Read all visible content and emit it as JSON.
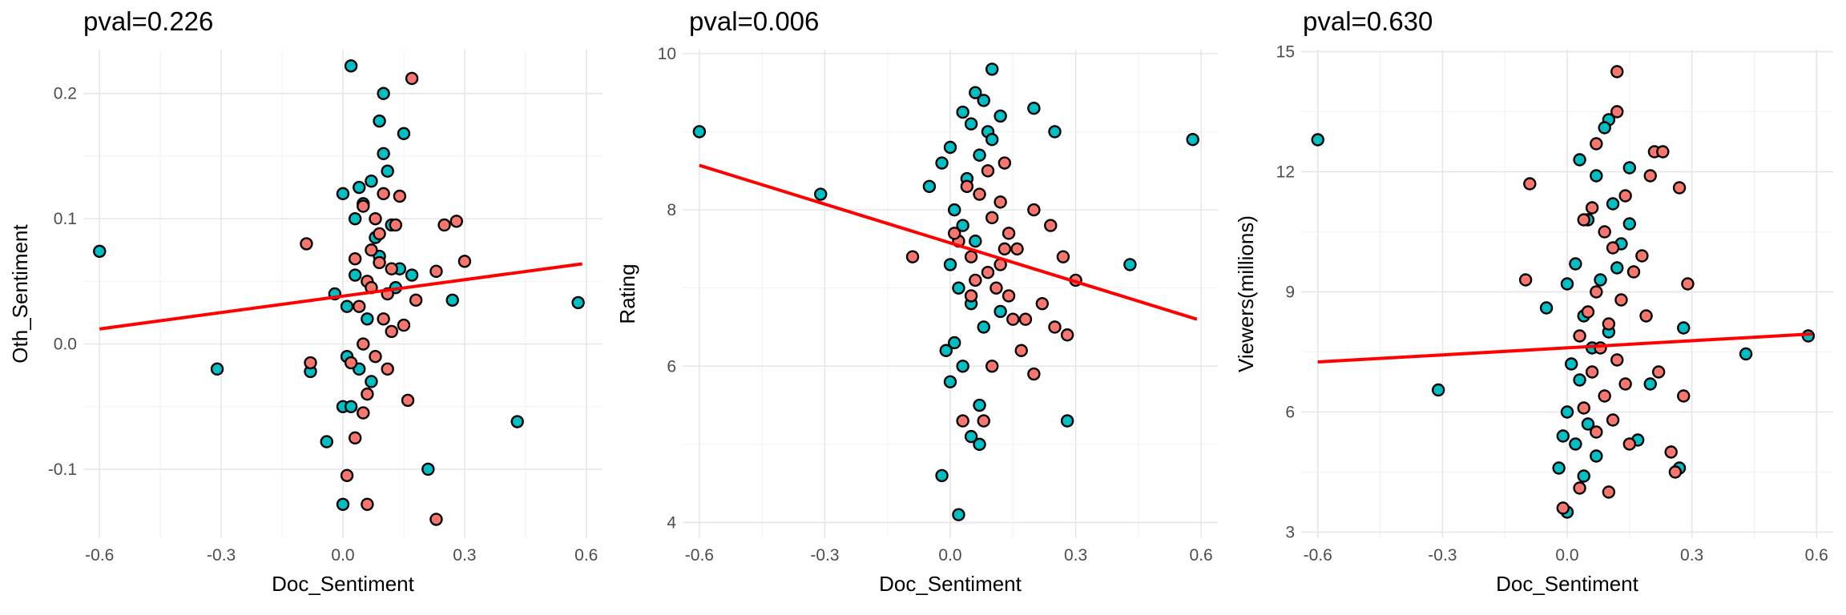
{
  "chart_data": [
    {
      "type": "scatter",
      "title": "pval=0.226",
      "xlabel": "Doc_Sentiment",
      "ylabel": "Oth_Sentiment",
      "xlim": [
        -0.64,
        0.64
      ],
      "ylim": [
        -0.155,
        0.235
      ],
      "xticks": [
        -0.6,
        -0.3,
        0.0,
        0.3,
        0.6
      ],
      "xtick_labels": [
        "-0.6",
        "-0.3",
        "0.0",
        "0.3",
        "0.6"
      ],
      "yticks": [
        -0.1,
        0.0,
        0.1,
        0.2
      ],
      "ytick_labels": [
        "-0.1",
        "0.0",
        "0.1",
        "0.2"
      ],
      "grid": true,
      "colors": {
        "teal": "#00BFC4",
        "salmon": "#F8766D",
        "fit": "#FF0000"
      },
      "fit_line": {
        "x": [
          -0.6,
          0.59
        ],
        "y": [
          0.012,
          0.064
        ]
      },
      "series": [
        {
          "color": "teal",
          "points": [
            [
              -0.6,
              0.074
            ],
            [
              -0.31,
              -0.02
            ],
            [
              0.43,
              -0.062
            ],
            [
              0.58,
              0.033
            ],
            [
              0.02,
              0.222
            ],
            [
              0.1,
              0.2
            ],
            [
              0.09,
              0.178
            ],
            [
              0.15,
              0.168
            ],
            [
              0.1,
              0.152
            ],
            [
              0.04,
              0.125
            ],
            [
              0.07,
              0.13
            ],
            [
              0.11,
              0.138
            ],
            [
              0.05,
              0.112
            ],
            [
              0.0,
              0.12
            ],
            [
              0.03,
              0.1
            ],
            [
              0.12,
              0.095
            ],
            [
              0.08,
              0.085
            ],
            [
              -0.02,
              0.04
            ],
            [
              0.01,
              0.03
            ],
            [
              0.06,
              0.02
            ],
            [
              0.14,
              0.06
            ],
            [
              0.17,
              0.055
            ],
            [
              0.27,
              0.035
            ],
            [
              0.01,
              -0.01
            ],
            [
              0.04,
              -0.02
            ],
            [
              -0.08,
              -0.022
            ],
            [
              0.07,
              -0.03
            ],
            [
              0.0,
              -0.05
            ],
            [
              -0.04,
              -0.078
            ],
            [
              0.21,
              -0.1
            ],
            [
              0.0,
              -0.128
            ],
            [
              0.02,
              -0.05
            ],
            [
              0.09,
              0.07
            ],
            [
              0.03,
              0.055
            ],
            [
              0.13,
              0.045
            ]
          ]
        },
        {
          "color": "salmon",
          "points": [
            [
              0.17,
              0.212
            ],
            [
              -0.09,
              0.08
            ],
            [
              0.05,
              0.11
            ],
            [
              0.08,
              0.1
            ],
            [
              0.13,
              0.095
            ],
            [
              0.07,
              0.075
            ],
            [
              0.09,
              0.065
            ],
            [
              0.06,
              0.05
            ],
            [
              0.11,
              0.04
            ],
            [
              0.04,
              0.03
            ],
            [
              0.1,
              0.02
            ],
            [
              0.12,
              0.01
            ],
            [
              0.05,
              0.0
            ],
            [
              0.08,
              -0.01
            ],
            [
              0.15,
              0.015
            ],
            [
              0.02,
              -0.015
            ],
            [
              -0.08,
              -0.015
            ],
            [
              0.25,
              0.095
            ],
            [
              0.28,
              0.098
            ],
            [
              0.23,
              0.058
            ],
            [
              0.3,
              0.066
            ],
            [
              0.06,
              -0.04
            ],
            [
              0.11,
              -0.02
            ],
            [
              0.05,
              -0.055
            ],
            [
              0.03,
              -0.075
            ],
            [
              0.16,
              -0.045
            ],
            [
              0.01,
              -0.105
            ],
            [
              0.06,
              -0.128
            ],
            [
              0.23,
              -0.14
            ],
            [
              0.14,
              0.118
            ],
            [
              0.09,
              0.088
            ],
            [
              0.03,
              0.068
            ],
            [
              0.07,
              0.045
            ],
            [
              0.12,
              0.06
            ],
            [
              0.18,
              0.035
            ],
            [
              0.1,
              0.12
            ]
          ]
        }
      ]
    },
    {
      "type": "scatter",
      "title": "pval=0.006",
      "xlabel": "Doc_Sentiment",
      "ylabel": "Rating",
      "xlim": [
        -0.64,
        0.64
      ],
      "ylim": [
        3.8,
        10.05
      ],
      "xticks": [
        -0.6,
        -0.3,
        0.0,
        0.3,
        0.6
      ],
      "xtick_labels": [
        "-0.6",
        "-0.3",
        "0.0",
        "0.3",
        "0.6"
      ],
      "yticks": [
        4,
        6,
        8,
        10
      ],
      "ytick_labels": [
        "4",
        "6",
        "8",
        "10"
      ],
      "grid": true,
      "colors": {
        "teal": "#00BFC4",
        "salmon": "#F8766D",
        "fit": "#FF0000"
      },
      "fit_line": {
        "x": [
          -0.6,
          0.59
        ],
        "y": [
          8.57,
          6.6
        ]
      },
      "series": [
        {
          "color": "teal",
          "points": [
            [
              -0.6,
              9.0
            ],
            [
              -0.31,
              8.2
            ],
            [
              0.58,
              8.9
            ],
            [
              0.43,
              7.3
            ],
            [
              0.2,
              9.3
            ],
            [
              0.25,
              9.0
            ],
            [
              0.1,
              9.8
            ],
            [
              0.06,
              9.5
            ],
            [
              0.08,
              9.4
            ],
            [
              0.03,
              9.25
            ],
            [
              0.05,
              9.1
            ],
            [
              0.09,
              9.0
            ],
            [
              0.0,
              8.8
            ],
            [
              -0.02,
              8.6
            ],
            [
              0.04,
              8.4
            ],
            [
              0.07,
              8.7
            ],
            [
              -0.05,
              8.3
            ],
            [
              0.01,
              8.0
            ],
            [
              0.03,
              7.8
            ],
            [
              0.06,
              7.6
            ],
            [
              0.0,
              7.3
            ],
            [
              0.02,
              7.0
            ],
            [
              0.05,
              6.8
            ],
            [
              0.08,
              6.5
            ],
            [
              0.01,
              6.3
            ],
            [
              -0.01,
              6.2
            ],
            [
              0.03,
              6.0
            ],
            [
              0.0,
              5.8
            ],
            [
              0.07,
              5.5
            ],
            [
              0.05,
              5.1
            ],
            [
              0.07,
              5.0
            ],
            [
              -0.02,
              4.6
            ],
            [
              0.02,
              4.1
            ],
            [
              0.28,
              5.3
            ],
            [
              0.12,
              6.7
            ],
            [
              0.1,
              8.9
            ],
            [
              0.12,
              9.2
            ]
          ]
        },
        {
          "color": "salmon",
          "points": [
            [
              -0.09,
              7.4
            ],
            [
              0.13,
              8.6
            ],
            [
              0.12,
              8.1
            ],
            [
              0.1,
              7.9
            ],
            [
              0.07,
              8.2
            ],
            [
              0.14,
              7.7
            ],
            [
              0.16,
              7.5
            ],
            [
              0.05,
              7.4
            ],
            [
              0.09,
              7.2
            ],
            [
              0.11,
              7.0
            ],
            [
              0.2,
              8.0
            ],
            [
              0.24,
              7.8
            ],
            [
              0.27,
              7.4
            ],
            [
              0.3,
              7.1
            ],
            [
              0.22,
              6.8
            ],
            [
              0.15,
              6.6
            ],
            [
              0.17,
              6.2
            ],
            [
              0.25,
              6.5
            ],
            [
              0.28,
              6.4
            ],
            [
              0.2,
              5.9
            ],
            [
              0.05,
              6.9
            ],
            [
              0.02,
              7.6
            ],
            [
              0.04,
              8.3
            ],
            [
              0.06,
              7.1
            ],
            [
              0.03,
              5.3
            ],
            [
              0.08,
              5.3
            ],
            [
              0.1,
              6.0
            ],
            [
              0.12,
              7.3
            ],
            [
              0.14,
              6.9
            ],
            [
              0.18,
              6.6
            ],
            [
              0.09,
              8.5
            ],
            [
              0.01,
              7.7
            ],
            [
              0.13,
              7.5
            ]
          ]
        }
      ]
    },
    {
      "type": "scatter",
      "title": "pval=0.630",
      "xlabel": "Doc_Sentiment",
      "ylabel": "Viewers(millions)",
      "xlim": [
        -0.64,
        0.64
      ],
      "ylim": [
        2.85,
        15.05
      ],
      "xticks": [
        -0.6,
        -0.3,
        0.0,
        0.3,
        0.6
      ],
      "xtick_labels": [
        "-0.6",
        "-0.3",
        "0.0",
        "0.3",
        "0.6"
      ],
      "yticks": [
        3,
        6,
        9,
        12,
        15
      ],
      "ytick_labels": [
        "3",
        "6",
        "9",
        "12",
        "15"
      ],
      "grid": true,
      "colors": {
        "teal": "#00BFC4",
        "salmon": "#F8766D",
        "fit": "#FF0000"
      },
      "fit_line": {
        "x": [
          -0.6,
          0.59
        ],
        "y": [
          7.25,
          7.95
        ]
      },
      "series": [
        {
          "color": "teal",
          "points": [
            [
              -0.6,
              12.8
            ],
            [
              -0.31,
              6.55
            ],
            [
              0.43,
              7.45
            ],
            [
              0.58,
              7.9
            ],
            [
              0.1,
              13.3
            ],
            [
              0.09,
              13.1
            ],
            [
              0.03,
              12.3
            ],
            [
              0.15,
              12.1
            ],
            [
              0.07,
              11.9
            ],
            [
              0.11,
              11.2
            ],
            [
              0.05,
              10.8
            ],
            [
              0.13,
              10.2
            ],
            [
              0.02,
              9.7
            ],
            [
              0.08,
              9.3
            ],
            [
              0.0,
              9.2
            ],
            [
              -0.05,
              8.6
            ],
            [
              0.04,
              8.4
            ],
            [
              0.1,
              8.0
            ],
            [
              0.06,
              7.6
            ],
            [
              0.01,
              7.2
            ],
            [
              0.03,
              6.8
            ],
            [
              0.0,
              6.0
            ],
            [
              0.05,
              5.7
            ],
            [
              0.02,
              5.2
            ],
            [
              -0.01,
              5.4
            ],
            [
              0.07,
              4.9
            ],
            [
              -0.02,
              4.6
            ],
            [
              0.04,
              4.4
            ],
            [
              0.0,
              3.5
            ],
            [
              0.27,
              4.6
            ],
            [
              0.28,
              8.1
            ],
            [
              0.2,
              6.7
            ],
            [
              0.17,
              5.3
            ],
            [
              0.12,
              9.6
            ],
            [
              0.15,
              10.7
            ]
          ]
        },
        {
          "color": "salmon",
          "points": [
            [
              0.12,
              14.5
            ],
            [
              0.12,
              13.5
            ],
            [
              0.07,
              12.7
            ],
            [
              0.21,
              12.5
            ],
            [
              0.23,
              12.5
            ],
            [
              0.27,
              11.6
            ],
            [
              0.2,
              11.9
            ],
            [
              -0.09,
              11.7
            ],
            [
              0.14,
              11.4
            ],
            [
              0.06,
              11.1
            ],
            [
              0.04,
              10.8
            ],
            [
              0.09,
              10.5
            ],
            [
              0.11,
              10.1
            ],
            [
              0.18,
              9.9
            ],
            [
              0.16,
              9.5
            ],
            [
              0.29,
              9.2
            ],
            [
              -0.1,
              9.3
            ],
            [
              0.07,
              9.0
            ],
            [
              0.13,
              8.8
            ],
            [
              0.05,
              8.5
            ],
            [
              0.1,
              8.2
            ],
            [
              0.03,
              7.9
            ],
            [
              0.08,
              7.6
            ],
            [
              0.12,
              7.3
            ],
            [
              0.06,
              7.0
            ],
            [
              0.14,
              6.7
            ],
            [
              0.09,
              6.4
            ],
            [
              0.04,
              6.1
            ],
            [
              0.11,
              5.8
            ],
            [
              0.07,
              5.5
            ],
            [
              0.15,
              5.2
            ],
            [
              0.25,
              5.0
            ],
            [
              0.26,
              4.5
            ],
            [
              0.1,
              4.0
            ],
            [
              -0.01,
              3.6
            ],
            [
              0.03,
              4.1
            ],
            [
              0.28,
              6.4
            ],
            [
              0.19,
              8.4
            ],
            [
              0.22,
              7.0
            ]
          ]
        }
      ]
    }
  ]
}
